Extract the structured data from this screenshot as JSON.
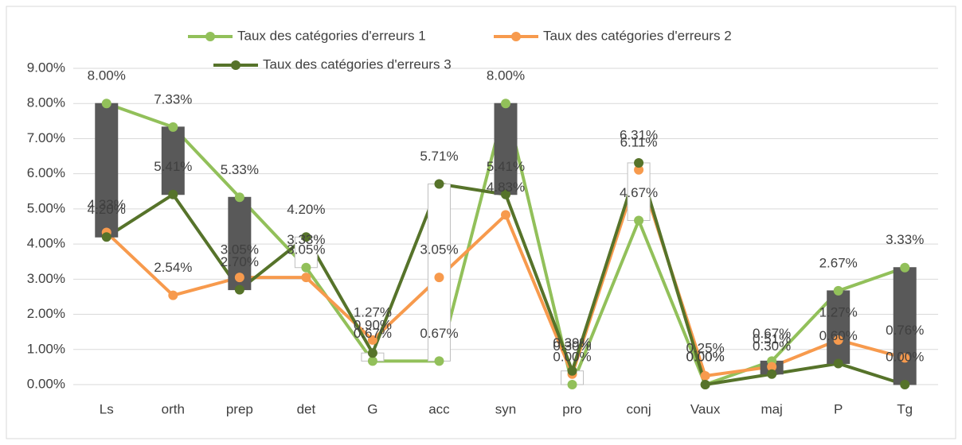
{
  "chart_data": {
    "type": "line",
    "categories": [
      "Ls",
      "orth",
      "prep",
      "det",
      "G",
      "acc",
      "syn",
      "pro",
      "conj",
      "Vaux",
      "maj",
      "P",
      "Tg"
    ],
    "series": [
      {
        "name": "Taux  des catégories d'erreurs 1",
        "color": "#92c05a",
        "values": [
          8.0,
          7.33,
          5.33,
          3.33,
          0.67,
          0.67,
          8.0,
          0.0,
          4.67,
          0.0,
          0.67,
          2.67,
          3.33
        ],
        "value_labels": [
          "8.00%",
          "7.33%",
          "5.33%",
          "3.33%",
          "0.67%",
          "0.67%",
          "8.00%",
          "0.00%",
          "4.67%",
          "0.00%",
          "0.67%",
          "2.67%",
          "3.33%"
        ]
      },
      {
        "name": "Taux  des catégories d'erreurs 2",
        "color": "#f79a4d",
        "values": [
          4.33,
          2.54,
          3.05,
          3.05,
          1.27,
          3.05,
          4.83,
          0.3,
          6.11,
          0.25,
          0.51,
          1.27,
          0.76
        ],
        "value_labels": [
          "4.33%",
          "2.54%",
          "3.05%",
          "3.05%",
          "1.27%",
          "3.05%",
          "4.83%",
          "0.30%",
          "6.11%",
          "0.25%",
          "0.51%",
          "1.27%",
          "0.76%"
        ]
      },
      {
        "name": "Taux  des catégories d'erreurs 3",
        "color": "#56732a",
        "values": [
          4.2,
          5.41,
          2.7,
          4.2,
          0.9,
          5.71,
          5.41,
          0.39,
          6.31,
          0.0,
          0.3,
          0.6,
          0.0
        ],
        "value_labels": [
          "4.20%",
          "5.41%",
          "2.70%",
          "4.20%",
          "0.90%",
          "5.71%",
          "5.41%",
          "0.39%",
          "6.31%",
          "0.00%",
          "0.30%",
          "0.60%",
          "0.00%"
        ]
      }
    ],
    "ylim": [
      0,
      9
    ],
    "yticks": [
      {
        "value": 0,
        "label": "0.00%"
      },
      {
        "value": 1,
        "label": "1.00%"
      },
      {
        "value": 2,
        "label": "2.00%"
      },
      {
        "value": 3,
        "label": "3.00%"
      },
      {
        "value": 4,
        "label": "4.00%"
      },
      {
        "value": 5,
        "label": "5.00%"
      },
      {
        "value": 6,
        "label": "6.00%"
      },
      {
        "value": 7,
        "label": "7.00%"
      },
      {
        "value": 8,
        "label": "8.00%"
      },
      {
        "value": 9,
        "label": "9.00%"
      }
    ],
    "grid": true,
    "up_down_bars": true,
    "up_color": "#ffffff",
    "down_color": "#595959"
  }
}
